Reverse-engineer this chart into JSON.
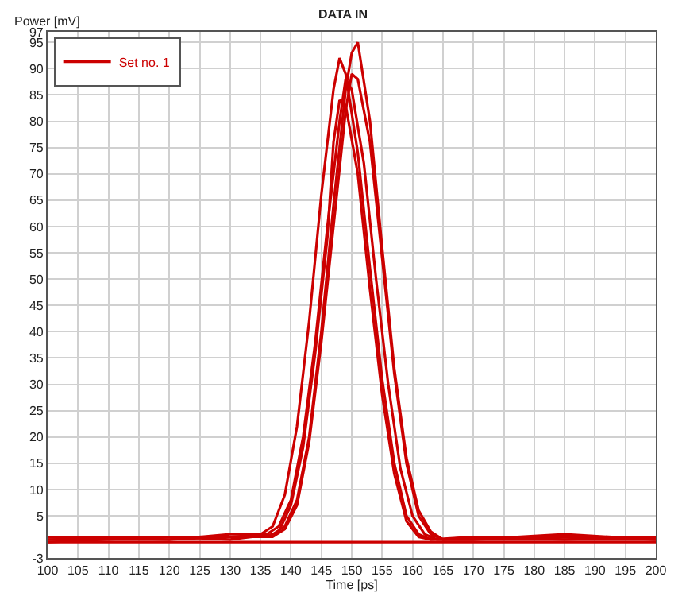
{
  "chart_data": {
    "type": "line",
    "title": "DATA IN",
    "xlabel": "Time [ps]",
    "ylabel": "Power [mV]",
    "series": [
      {
        "name": "Set no. 1",
        "color": "#cc0000",
        "x": [
          100,
          120,
          130,
          136,
          138,
          140,
          142,
          144,
          146,
          148,
          149,
          150,
          152,
          154,
          156,
          158,
          160,
          162,
          164,
          170,
          185,
          200
        ],
        "values": [
          0.5,
          1,
          1,
          1.5,
          3,
          8,
          20,
          38,
          60,
          80,
          88,
          86,
          72,
          50,
          30,
          14,
          5,
          1.5,
          0.5,
          0.5,
          1,
          0.5
        ]
      },
      {
        "color": "#cc0000",
        "x": [
          100,
          120,
          130,
          135,
          137,
          139,
          141,
          143,
          145,
          147,
          148,
          149,
          151,
          153,
          155,
          157,
          159,
          161,
          163,
          170,
          185,
          200
        ],
        "values": [
          1,
          0.5,
          1.5,
          1.5,
          3,
          9,
          22,
          42,
          66,
          86,
          92,
          89,
          74,
          52,
          31,
          15,
          5,
          1.5,
          0.5,
          1,
          0.5,
          1
        ]
      },
      {
        "color": "#cc0000",
        "x": [
          100,
          120,
          130,
          137,
          139,
          141,
          143,
          145,
          147,
          149,
          150,
          151,
          153,
          155,
          157,
          159,
          161,
          163,
          165,
          170,
          185,
          200
        ],
        "values": [
          0,
          1,
          0.5,
          1.5,
          3,
          8,
          20,
          40,
          64,
          86,
          93,
          95,
          80,
          56,
          33,
          16,
          6,
          2,
          0.5,
          0.5,
          1.5,
          0.5
        ]
      },
      {
        "color": "#cc0000",
        "x": [
          100,
          120,
          130,
          136,
          138,
          140,
          142,
          144,
          146,
          147,
          148,
          149,
          151,
          153,
          155,
          157,
          159,
          161,
          163,
          170,
          185,
          200
        ],
        "values": [
          0.5,
          0.5,
          1,
          1,
          2,
          7,
          18,
          36,
          58,
          76,
          84,
          83,
          70,
          48,
          28,
          13,
          4,
          1,
          0.5,
          0.5,
          0.5,
          0.5
        ]
      },
      {
        "color": "#cc0000",
        "x": [
          100,
          120,
          130,
          137,
          139,
          141,
          143,
          145,
          147,
          149,
          150,
          151,
          153,
          155,
          157,
          159,
          161,
          163,
          165,
          170,
          185,
          200
        ],
        "values": [
          1,
          1,
          1,
          1,
          2.5,
          7,
          19,
          38,
          60,
          82,
          89,
          88,
          76,
          54,
          32,
          15,
          5,
          1.5,
          0.5,
          1,
          1,
          1
        ]
      },
      {
        "color": "#cc0000",
        "x": [
          100,
          150,
          200
        ],
        "values": [
          0,
          0,
          0
        ]
      }
    ],
    "xlim": [
      100,
      200
    ],
    "xticks": [
      100,
      105,
      110,
      115,
      120,
      125,
      130,
      135,
      140,
      145,
      150,
      155,
      160,
      165,
      170,
      175,
      180,
      185,
      190,
      195,
      200
    ],
    "ylim": [
      -3,
      97
    ],
    "yticks": [
      -3,
      5,
      10,
      15,
      20,
      25,
      30,
      35,
      40,
      45,
      50,
      55,
      60,
      65,
      70,
      75,
      80,
      85,
      90,
      95,
      97
    ],
    "grid": true,
    "legend": "top left",
    "marker": "none",
    "line_style": "solid"
  }
}
